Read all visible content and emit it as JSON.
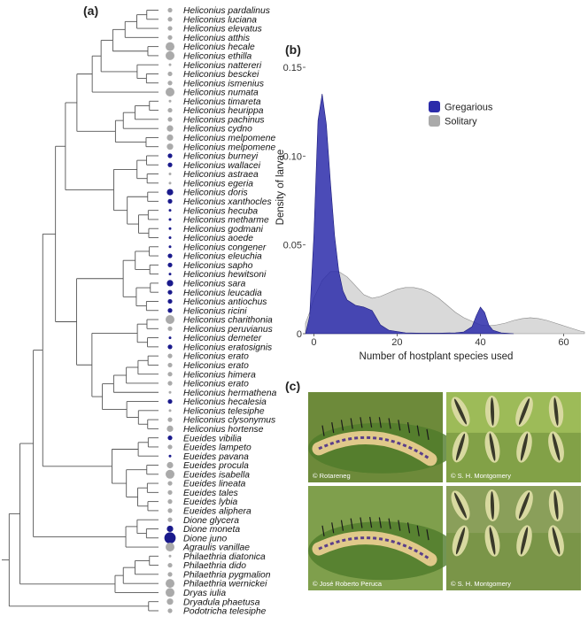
{
  "panels": {
    "a": "(a)",
    "b": "(b)",
    "c": "(c)"
  },
  "colors": {
    "gregarious": "#1a1a8c",
    "gregarious_fill": "#2b2baa",
    "solitary": "#aaaaaa",
    "solitary_fill": "#d0d0d0",
    "tree_line": "#555555"
  },
  "chart_data": [
    {
      "type": "tree",
      "panel": "(a)",
      "tips": [
        {
          "name": "Heliconius pardalinus",
          "state": "solitary",
          "size": 1
        },
        {
          "name": "Heliconius luciana",
          "state": "solitary",
          "size": 1
        },
        {
          "name": "Heliconius elevatus",
          "state": "solitary",
          "size": 1
        },
        {
          "name": "Heliconius atthis",
          "state": "solitary",
          "size": 1
        },
        {
          "name": "Heliconius hecale",
          "state": "solitary",
          "size": 3
        },
        {
          "name": "Heliconius ethilla",
          "state": "solitary",
          "size": 3
        },
        {
          "name": "Heliconius nattereri",
          "state": "solitary",
          "size": 0
        },
        {
          "name": "Heliconius besckei",
          "state": "solitary",
          "size": 1
        },
        {
          "name": "Heliconius ismenius",
          "state": "solitary",
          "size": 1
        },
        {
          "name": "Heliconius numata",
          "state": "solitary",
          "size": 3
        },
        {
          "name": "Heliconius timareta",
          "state": "solitary",
          "size": 0
        },
        {
          "name": "Heliconius heurippa",
          "state": "solitary",
          "size": 1
        },
        {
          "name": "Heliconius pachinus",
          "state": "solitary",
          "size": 1
        },
        {
          "name": "Heliconius cydno",
          "state": "solitary",
          "size": 2
        },
        {
          "name": "Heliconius melpomene",
          "state": "solitary",
          "size": 2
        },
        {
          "name": "Heliconius melpomene",
          "state": "solitary",
          "size": 2
        },
        {
          "name": "Heliconius burneyi",
          "state": "gregarious",
          "size": 1
        },
        {
          "name": "Heliconius wallacei",
          "state": "gregarious",
          "size": 1
        },
        {
          "name": "Heliconius astraea",
          "state": "solitary",
          "size": 0
        },
        {
          "name": "Heliconius egeria",
          "state": "solitary",
          "size": 0
        },
        {
          "name": "Heliconius doris",
          "state": "gregarious",
          "size": 2
        },
        {
          "name": "Heliconius xanthocles",
          "state": "gregarious",
          "size": 1
        },
        {
          "name": "Heliconius hecuba",
          "state": "gregarious",
          "size": 0
        },
        {
          "name": "Heliconius metharme",
          "state": "gregarious",
          "size": 0
        },
        {
          "name": "Heliconius godmani",
          "state": "gregarious",
          "size": 0
        },
        {
          "name": "Heliconius aoede",
          "state": "gregarious",
          "size": 0
        },
        {
          "name": "Heliconius congener",
          "state": "gregarious",
          "size": 0
        },
        {
          "name": "Heliconius eleuchia",
          "state": "gregarious",
          "size": 1
        },
        {
          "name": "Heliconius sapho",
          "state": "gregarious",
          "size": 1
        },
        {
          "name": "Heliconius hewitsoni",
          "state": "gregarious",
          "size": 0
        },
        {
          "name": "Heliconius sara",
          "state": "gregarious",
          "size": 2
        },
        {
          "name": "Heliconius leucadia",
          "state": "gregarious",
          "size": 1
        },
        {
          "name": "Heliconius antiochus",
          "state": "gregarious",
          "size": 1
        },
        {
          "name": "Heliconius ricini",
          "state": "gregarious",
          "size": 1
        },
        {
          "name": "Heliconius charithonia",
          "state": "solitary",
          "size": 3
        },
        {
          "name": "Heliconius peruvianus",
          "state": "solitary",
          "size": 1
        },
        {
          "name": "Heliconius demeter",
          "state": "gregarious",
          "size": 0
        },
        {
          "name": "Heliconius eratosignis",
          "state": "gregarious",
          "size": 1
        },
        {
          "name": "Heliconius erato",
          "state": "solitary",
          "size": 1
        },
        {
          "name": "Heliconius erato",
          "state": "solitary",
          "size": 1
        },
        {
          "name": "Heliconius himera",
          "state": "solitary",
          "size": 1
        },
        {
          "name": "Heliconius erato",
          "state": "solitary",
          "size": 1
        },
        {
          "name": "Heliconius hermathena",
          "state": "solitary",
          "size": 0
        },
        {
          "name": "Heliconius hecalesia",
          "state": "gregarious",
          "size": 1
        },
        {
          "name": "Heliconius telesiphe",
          "state": "solitary",
          "size": 0
        },
        {
          "name": "Heliconius clysonymus",
          "state": "solitary",
          "size": 1
        },
        {
          "name": "Heliconius hortense",
          "state": "solitary",
          "size": 2
        },
        {
          "name": "Eueides vibilia",
          "state": "gregarious",
          "size": 1
        },
        {
          "name": "Eueides lampeto",
          "state": "solitary",
          "size": 1
        },
        {
          "name": "Eueides pavana",
          "state": "gregarious",
          "size": 0
        },
        {
          "name": "Eueides procula",
          "state": "solitary",
          "size": 2
        },
        {
          "name": "Eueides isabella",
          "state": "solitary",
          "size": 3
        },
        {
          "name": "Eueides lineata",
          "state": "solitary",
          "size": 1
        },
        {
          "name": "Eueides tales",
          "state": "solitary",
          "size": 1
        },
        {
          "name": "Eueides lybia",
          "state": "solitary",
          "size": 1
        },
        {
          "name": "Eueides aliphera",
          "state": "solitary",
          "size": 1
        },
        {
          "name": "Dione glycera",
          "state": "solitary",
          "size": 1
        },
        {
          "name": "Dione moneta",
          "state": "gregarious",
          "size": 2
        },
        {
          "name": "Dione juno",
          "state": "gregarious",
          "size": 4
        },
        {
          "name": "Agraulis vanillae",
          "state": "solitary",
          "size": 3
        },
        {
          "name": "Philaethria diatonica",
          "state": "solitary",
          "size": 0
        },
        {
          "name": "Philaethria dido",
          "state": "solitary",
          "size": 1
        },
        {
          "name": "Philaethria pygmalion",
          "state": "solitary",
          "size": 1
        },
        {
          "name": "Philaethria wernickei",
          "state": "solitary",
          "size": 3
        },
        {
          "name": "Dryas iulia",
          "state": "solitary",
          "size": 3
        },
        {
          "name": "Dryadula phaetusa",
          "state": "solitary",
          "size": 2
        },
        {
          "name": "Podotricha telesiphe",
          "state": "solitary",
          "size": 1
        }
      ]
    },
    {
      "type": "area",
      "panel": "(b)",
      "xlabel": "Number of hostplant species used",
      "ylabel": "Density of larvae",
      "xlim": [
        -2,
        65
      ],
      "ylim": [
        0,
        0.155
      ],
      "xticks": [
        0,
        20,
        40,
        60
      ],
      "yticks": [
        0,
        0.05,
        0.1,
        0.15
      ],
      "xtick_labels": [
        "0",
        "20",
        "40",
        "60"
      ],
      "ytick_labels": [
        "0",
        "0.05",
        "0.10",
        "0.15"
      ],
      "legend": "top-right",
      "series": [
        {
          "name": "Gregarious",
          "x": [
            -2,
            -1,
            0,
            1,
            2,
            3,
            4,
            5,
            6,
            7,
            8,
            10,
            12,
            14,
            15,
            16,
            18,
            22,
            26,
            30,
            34,
            36,
            38,
            39,
            40,
            41,
            42,
            43,
            45,
            48
          ],
          "y": [
            0,
            0.01,
            0.055,
            0.12,
            0.135,
            0.118,
            0.085,
            0.055,
            0.035,
            0.024,
            0.019,
            0.016,
            0.015,
            0.013,
            0.009,
            0.005,
            0.002,
            0.0005,
            0.0003,
            0.0003,
            0.0005,
            0.001,
            0.004,
            0.01,
            0.015,
            0.012,
            0.005,
            0.002,
            0.0005,
            0
          ]
        },
        {
          "name": "Solitary",
          "x": [
            -2,
            -1,
            0,
            2,
            4,
            6,
            8,
            10,
            12,
            14,
            16,
            18,
            20,
            22,
            24,
            26,
            28,
            30,
            32,
            34,
            36,
            38,
            40,
            42,
            44,
            46,
            48,
            50,
            52,
            54,
            56,
            58,
            60,
            62,
            64,
            65
          ],
          "y": [
            0.006,
            0.012,
            0.02,
            0.03,
            0.035,
            0.035,
            0.032,
            0.027,
            0.022,
            0.02,
            0.021,
            0.023,
            0.025,
            0.026,
            0.026,
            0.025,
            0.023,
            0.02,
            0.016,
            0.012,
            0.009,
            0.007,
            0.005,
            0.0045,
            0.005,
            0.006,
            0.0075,
            0.0085,
            0.009,
            0.0085,
            0.0075,
            0.006,
            0.0045,
            0.003,
            0.0015,
            0.001
          ]
        }
      ]
    }
  ],
  "photos": [
    {
      "credit": "© Rotareneg",
      "kind": "single"
    },
    {
      "credit": "© S. H. Montgomery",
      "kind": "group"
    },
    {
      "credit": "© José Roberto Peruca",
      "kind": "single"
    },
    {
      "credit": "© S. H. Montgomery",
      "kind": "group"
    }
  ]
}
